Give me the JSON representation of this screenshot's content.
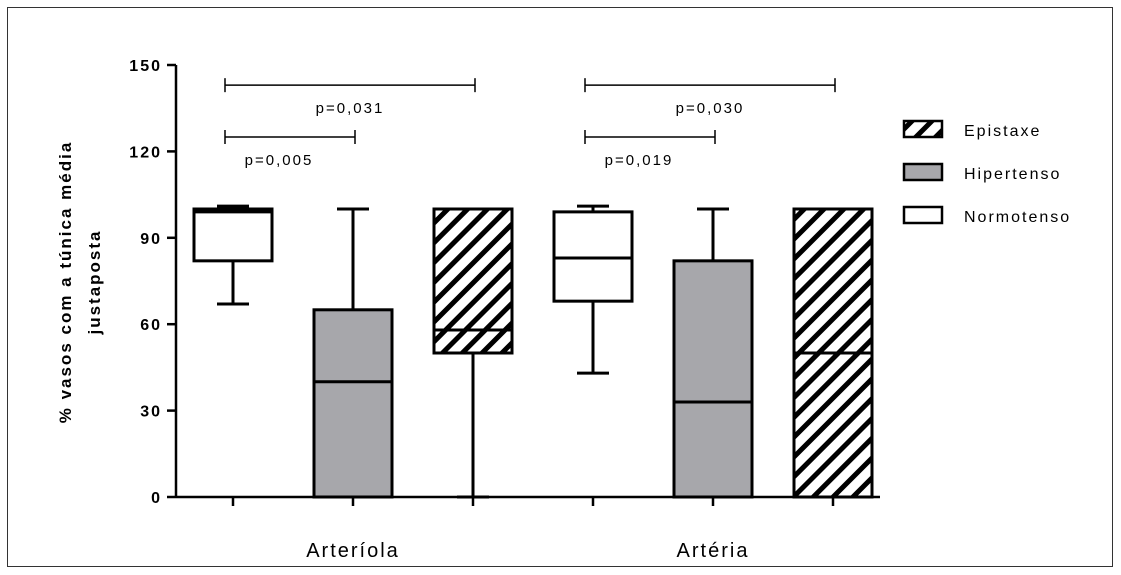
{
  "chart_data": {
    "type": "box",
    "ylabel_line1": "% vasos com a túnica média",
    "ylabel_line2": "justaposta",
    "ylim": [
      0,
      150
    ],
    "yticks": [
      0,
      30,
      60,
      90,
      120,
      150
    ],
    "categories": [
      "Arteríola",
      "Artéria"
    ],
    "legend": [
      "Epistaxe",
      "Hipertenso",
      "Normotenso"
    ],
    "legend_position": "right",
    "colors": {
      "Normotenso": "#ffffff",
      "Hipertenso": "#a7a7ab",
      "Epistaxe": "hatched"
    },
    "boxes": [
      {
        "category": "Arteríola",
        "group": "Normotenso",
        "min": 67,
        "q1": 82,
        "median": 99,
        "q3": 100,
        "max": 101
      },
      {
        "category": "Arteríola",
        "group": "Hipertenso",
        "min": 0,
        "q1": 0,
        "median": 40,
        "q3": 65,
        "max": 100
      },
      {
        "category": "Arteríola",
        "group": "Epistaxe",
        "min": 0,
        "q1": 50,
        "median": 58,
        "q3": 100,
        "max": 100
      },
      {
        "category": "Artéria",
        "group": "Normotenso",
        "min": 43,
        "q1": 68,
        "median": 83,
        "q3": 99,
        "max": 101
      },
      {
        "category": "Artéria",
        "group": "Hipertenso",
        "min": 0,
        "q1": 0,
        "median": 33,
        "q3": 82,
        "max": 100
      },
      {
        "category": "Artéria",
        "group": "Epistaxe",
        "min": 0,
        "q1": 0,
        "median": 50,
        "q3": 100,
        "max": 100
      }
    ],
    "annotations": [
      {
        "category": "Arteríola",
        "from": "Normotenso",
        "to": "Epistaxe",
        "y": 143,
        "text": "p=0,031"
      },
      {
        "category": "Arteríola",
        "from": "Normotenso",
        "to": "Hipertenso",
        "y": 125,
        "text": "p=0,005"
      },
      {
        "category": "Artéria",
        "from": "Normotenso",
        "to": "Epistaxe",
        "y": 143,
        "text": "p=0,030"
      },
      {
        "category": "Artéria",
        "from": "Normotenso",
        "to": "Hipertenso",
        "y": 125,
        "text": "p=0,019"
      }
    ]
  }
}
